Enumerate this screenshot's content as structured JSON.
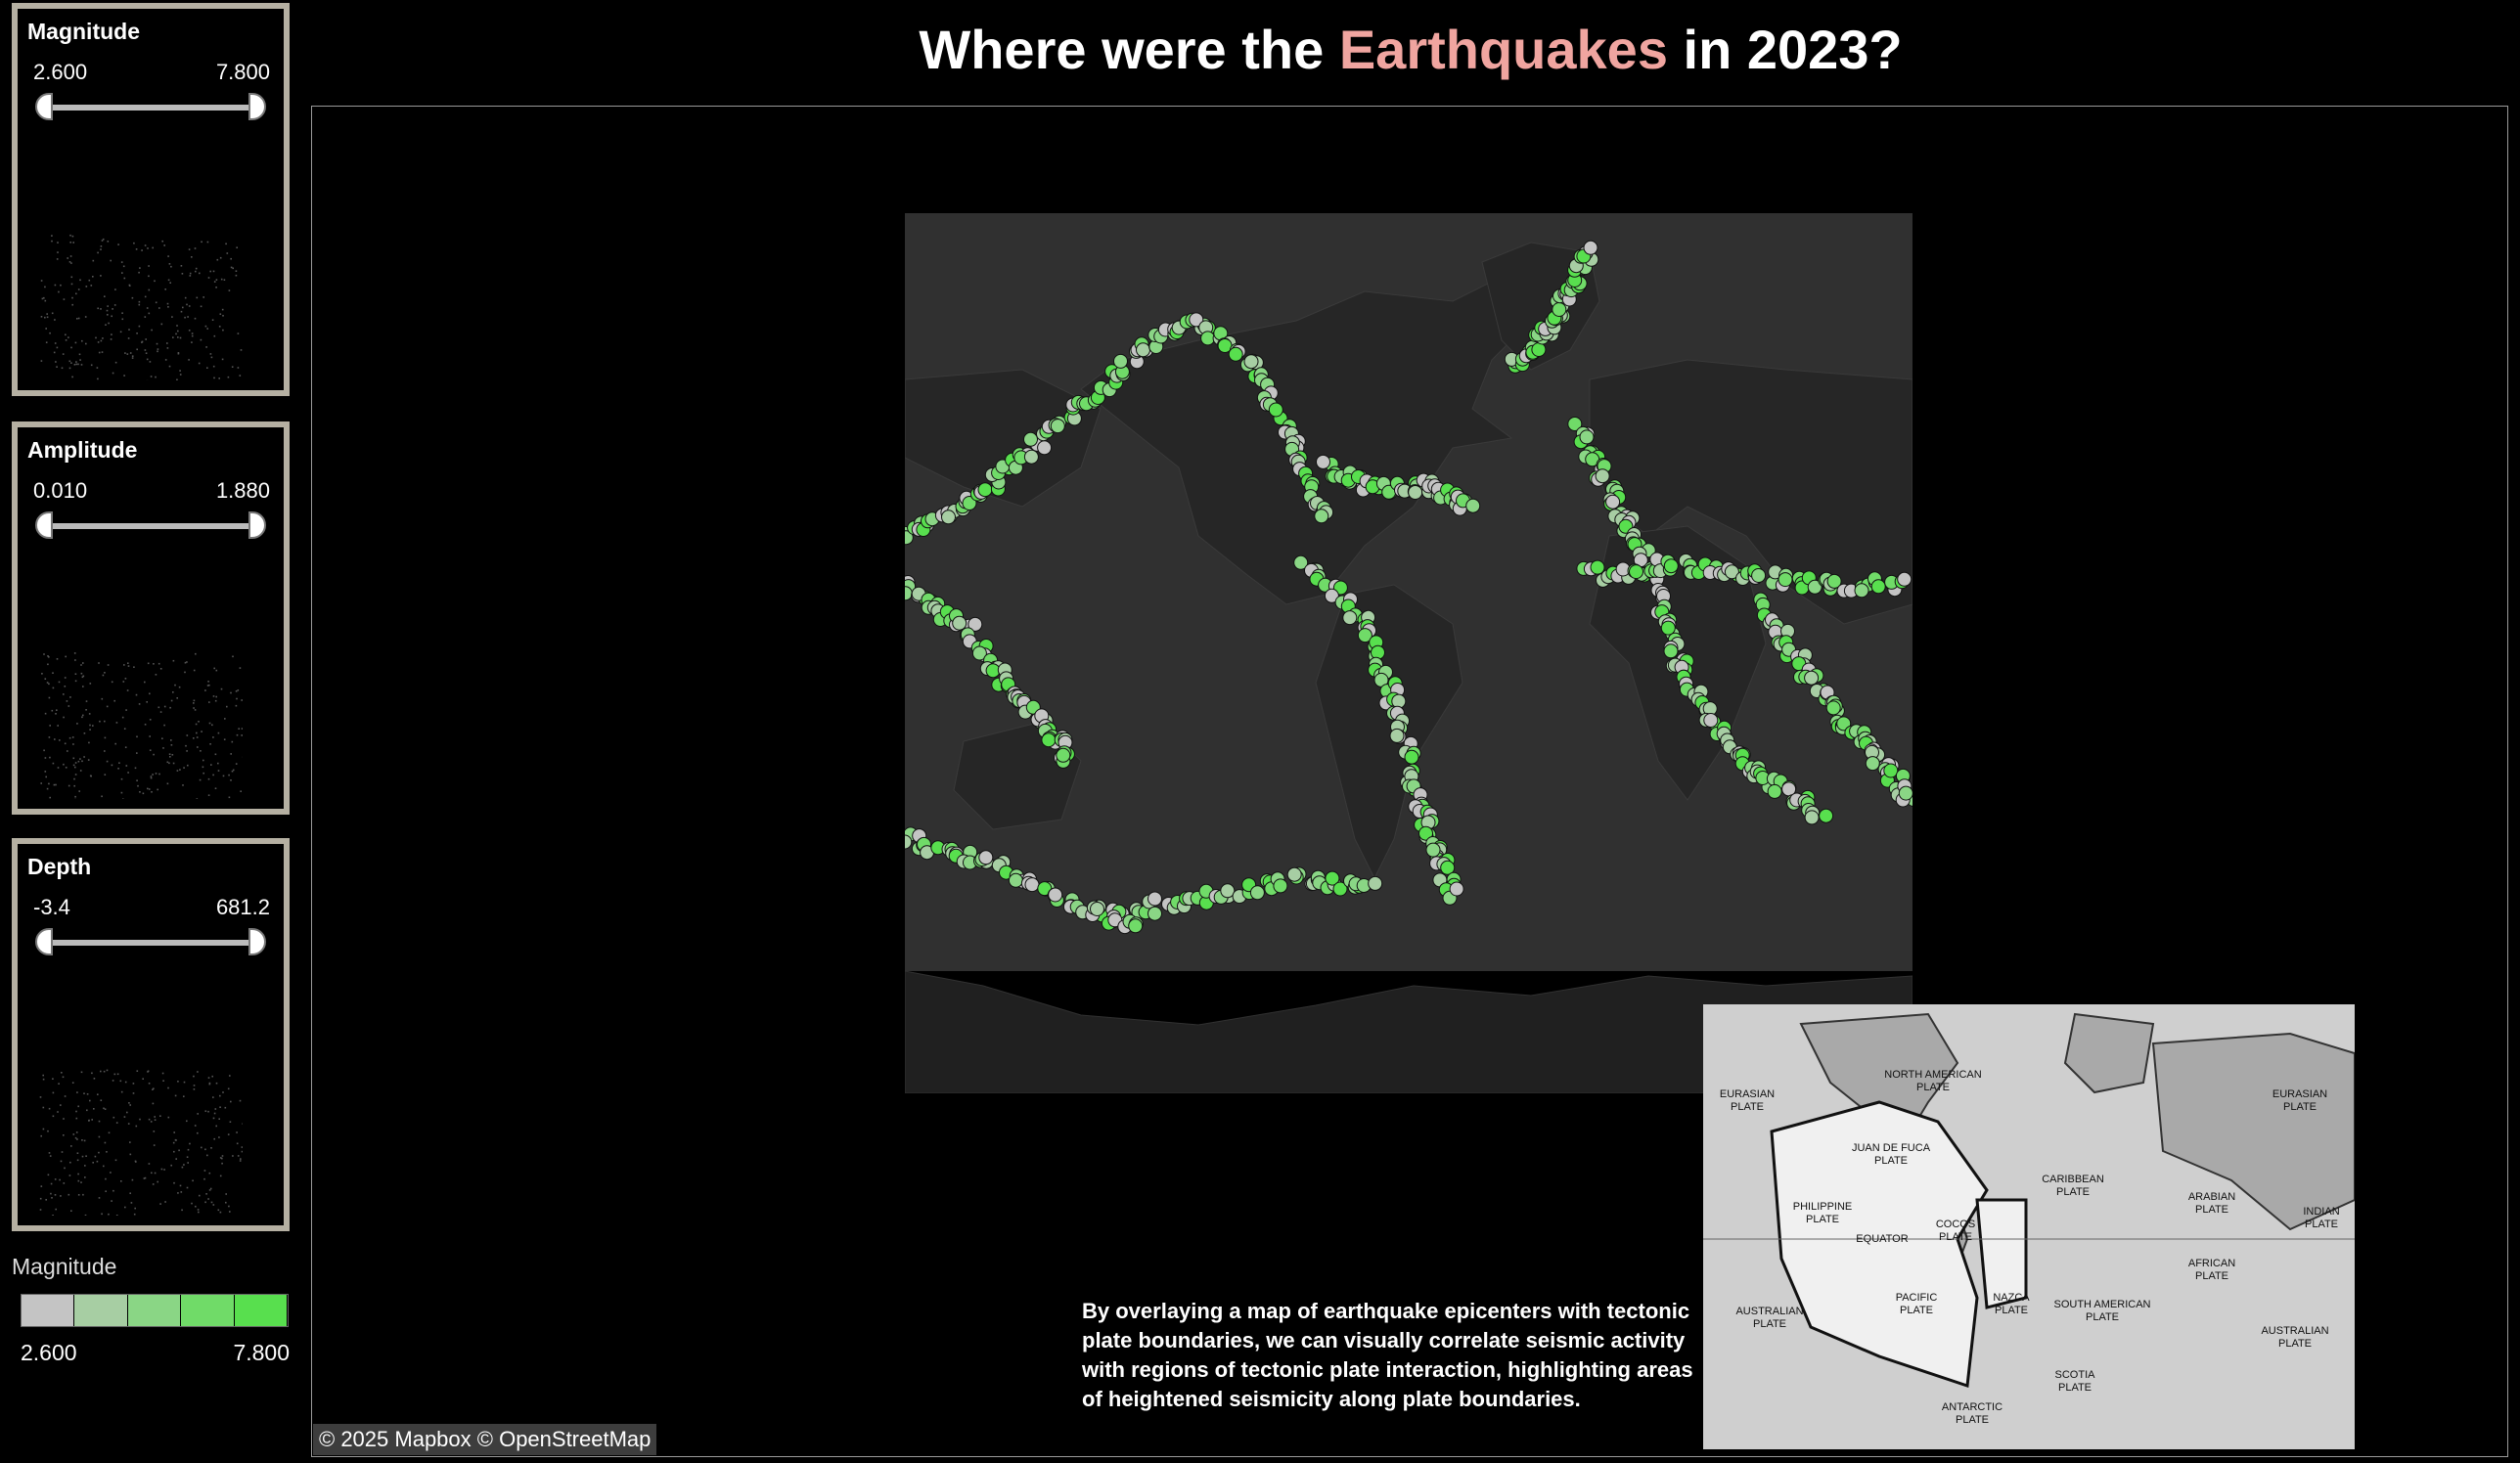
{
  "title": {
    "prefix": "Where were the ",
    "highlight": "Earthquakes",
    "suffix": " in 2023?",
    "highlight_color": "#f0a5a0"
  },
  "filters": [
    {
      "label": "Magnitude",
      "min": "2.600",
      "max": "7.800"
    },
    {
      "label": "Amplitude",
      "min": "0.010",
      "max": "1.880"
    },
    {
      "label": "Depth",
      "min": "-3.4",
      "max": "681.2"
    }
  ],
  "legend": {
    "title": "Magnitude",
    "min": "2.600",
    "max": "7.800",
    "colors": [
      "#c4c4c4",
      "#a7cea3",
      "#8ad685",
      "#70db68",
      "#58df4e"
    ]
  },
  "caption": "By overlaying a map of earthquake epicenters with tectonic plate boundaries, we can visually correlate seismic activity with regions of tectonic plate interaction, highlighting areas of heightened seismicity along plate boundaries.",
  "attribution": "© 2025 Mapbox  © OpenStreetMap",
  "inset_map": {
    "labels": [
      "EURASIAN PLATE",
      "NORTH AMERICAN PLATE",
      "EURASIAN PLATE",
      "JUAN DE FUCA PLATE",
      "CARIBBEAN PLATE",
      "ARABIAN PLATE",
      "PHILIPPINE PLATE",
      "COCOS PLATE",
      "INDIAN PLATE",
      "EQUATOR",
      "AFRICAN PLATE",
      "AUSTRALIAN PLATE",
      "PACIFIC PLATE",
      "NAZCA PLATE",
      "SOUTH AMERICAN PLATE",
      "AUSTRALIAN PLATE",
      "SCOTIA PLATE",
      "ANTARCTIC PLATE"
    ]
  },
  "colors": {
    "background": "#000000",
    "land": "#262626",
    "ocean": "#303030",
    "frame": "#b5b0a2"
  }
}
